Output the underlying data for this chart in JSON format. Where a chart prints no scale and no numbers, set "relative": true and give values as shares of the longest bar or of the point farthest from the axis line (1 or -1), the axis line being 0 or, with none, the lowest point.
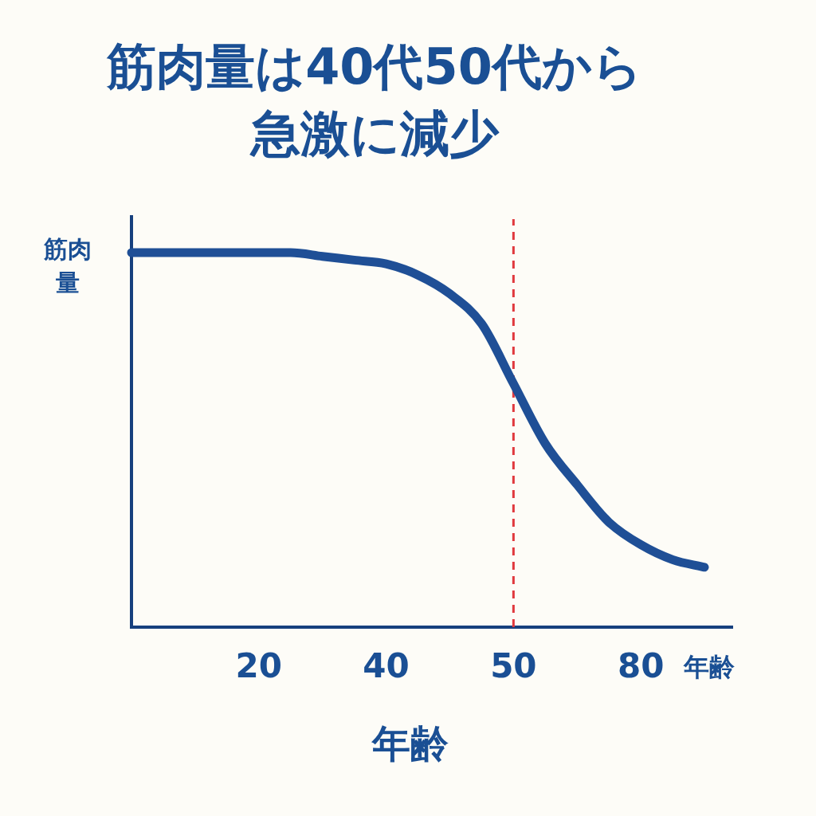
{
  "chart_data": {
    "type": "line",
    "title": "筋肉量は40代50代から急激に減少",
    "ylabel": "筋肉量",
    "xlabel": "年齢",
    "annotations": [
      "年齢"
    ],
    "categories": [
      null,
      null,
      null,
      null,
      "20",
      null,
      null,
      null,
      "40",
      null,
      null,
      null,
      "50",
      null,
      null,
      null,
      "80",
      null,
      null
    ],
    "values": [
      1.0,
      1.0,
      1.0,
      1.0,
      1.0,
      1.0,
      0.99,
      0.98,
      0.97,
      0.94,
      0.89,
      0.81,
      0.65,
      0.49,
      0.38,
      0.28,
      0.22,
      0.18,
      0.16
    ],
    "color": "#1f4f96",
    "relative": true,
    "marker": "none",
    "line_style": "solid",
    "ref_lines": [
      {
        "axis": "x",
        "value": "50",
        "color": "#e0393e",
        "line_style": "dashed"
      }
    ]
  }
}
